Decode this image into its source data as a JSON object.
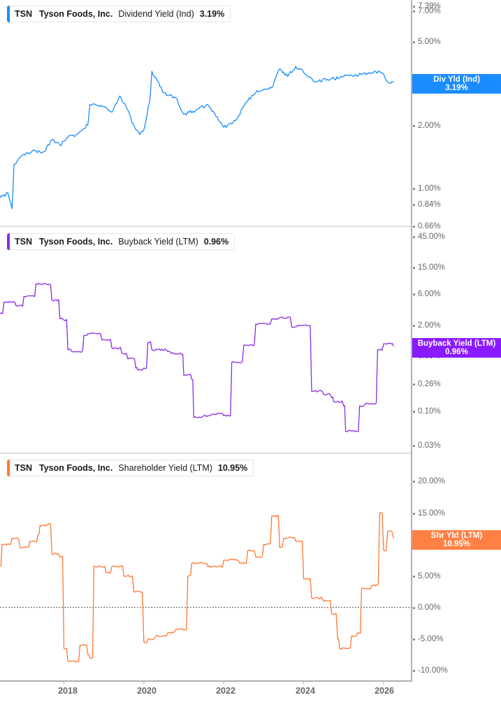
{
  "chart_data": [
    {
      "type": "line",
      "panel": "top",
      "title": "TSN Tyson Foods, Inc. Dividend Yield (Ind)",
      "legend": {
        "ticker": "TSN",
        "company": "Tyson Foods, Inc.",
        "metric": "Dividend Yield (Ind)",
        "value": "3.19%"
      },
      "color": "#1a8cff",
      "yscale": "log",
      "yticks": [
        "7.39%",
        "7.00%",
        "5.00%",
        "3.00%",
        "2.00%",
        "1.00%",
        "0.84%",
        "0.66%"
      ],
      "ylim": [
        0.66,
        7.39
      ],
      "flag": {
        "label": "Div Yld (Ind)",
        "value": "3.19%"
      },
      "x": [
        2016.4,
        2016.6,
        2016.7,
        2016.75,
        2017.0,
        2017.2,
        2017.5,
        2017.7,
        2017.9,
        2018.1,
        2018.3,
        2018.6,
        2018.65,
        2019.0,
        2019.2,
        2019.4,
        2019.6,
        2019.7,
        2019.9,
        2020.0,
        2020.15,
        2020.2,
        2020.5,
        2020.8,
        2021.0,
        2021.3,
        2021.6,
        2021.8,
        2022.0,
        2022.3,
        2022.6,
        2022.8,
        2023.0,
        2023.2,
        2023.4,
        2023.6,
        2023.8,
        2024.0,
        2024.3,
        2024.6,
        2024.9,
        2025.2,
        2025.5,
        2025.8,
        2026.0,
        2026.1,
        2026.25
      ],
      "values": [
        0.9,
        0.95,
        0.8,
        1.3,
        1.45,
        1.5,
        1.5,
        1.7,
        1.6,
        1.75,
        1.8,
        2.0,
        2.5,
        2.45,
        2.3,
        2.75,
        2.35,
        2.05,
        1.8,
        1.9,
        2.6,
        3.6,
        2.85,
        2.7,
        2.25,
        2.35,
        2.5,
        2.2,
        1.95,
        2.1,
        2.6,
        2.85,
        2.95,
        3.0,
        3.7,
        3.4,
        3.8,
        3.55,
        3.2,
        3.3,
        3.35,
        3.45,
        3.5,
        3.6,
        3.5,
        3.2,
        3.19
      ]
    },
    {
      "type": "line",
      "panel": "middle",
      "title": "TSN Tyson Foods, Inc. Buyback Yield (LTM)",
      "legend": {
        "ticker": "TSN",
        "company": "Tyson Foods, Inc.",
        "metric": "Buyback Yield (LTM)",
        "value": "0.96%"
      },
      "color": "#8a2be2",
      "yscale": "log",
      "yticks": [
        "45.00%",
        "15.00%",
        "6.00%",
        "2.00%",
        "0.69%",
        "0.26%",
        "0.10%",
        "0.03%"
      ],
      "ylim": [
        0.03,
        45.0
      ],
      "flag": {
        "label": "Buyback Yield (LTM)",
        "value": "0.96%"
      },
      "x": [
        2016.4,
        2016.5,
        2016.8,
        2017.0,
        2017.3,
        2017.6,
        2017.7,
        2017.9,
        2018.0,
        2018.1,
        2018.2,
        2018.5,
        2018.6,
        2018.95,
        2019.2,
        2019.45,
        2019.6,
        2019.8,
        2019.85,
        2020.0,
        2020.1,
        2020.2,
        2020.6,
        2020.7,
        2020.95,
        2021.0,
        2021.2,
        2021.25,
        2021.5,
        2021.7,
        2022.0,
        2022.2,
        2022.5,
        2022.8,
        2023.2,
        2023.4,
        2023.7,
        2023.85,
        2024.2,
        2024.5,
        2024.7,
        2024.75,
        2025.0,
        2025.05,
        2025.3,
        2025.4,
        2025.55,
        2025.85,
        2026.0,
        2026.25
      ],
      "values": [
        3.0,
        4.5,
        4.0,
        5.5,
        8.5,
        8.2,
        4.8,
        2.5,
        2.4,
        0.85,
        0.8,
        1.4,
        1.5,
        1.2,
        0.9,
        0.75,
        0.62,
        0.45,
        0.42,
        0.45,
        1.1,
        0.85,
        0.8,
        0.75,
        0.72,
        0.35,
        0.3,
        0.08,
        0.085,
        0.09,
        0.085,
        0.55,
        1.0,
        2.1,
        2.5,
        2.6,
        1.9,
        2.0,
        0.2,
        0.18,
        0.16,
        0.14,
        0.12,
        0.05,
        0.05,
        0.12,
        0.13,
        0.85,
        1.05,
        0.96
      ]
    },
    {
      "type": "line",
      "panel": "bottom",
      "title": "TSN Tyson Foods, Inc. Shareholder Yield (LTM)",
      "legend": {
        "ticker": "TSN",
        "company": "Tyson Foods, Inc.",
        "metric": "Shareholder Yield (LTM)",
        "value": "10.95%"
      },
      "color": "#ff7733",
      "yscale": "linear",
      "yticks": [
        "20.00%",
        "15.00%",
        "10.00%",
        "5.00%",
        "0.00%",
        "-5.00%",
        "-10.00%"
      ],
      "ylim": [
        -10.0,
        20.0
      ],
      "reference_line": 0.0,
      "flag": {
        "label": "Shr Yld (LTM)",
        "value": "10.95%"
      },
      "x": [
        2016.4,
        2016.45,
        2016.7,
        2016.9,
        2017.15,
        2017.35,
        2017.4,
        2017.6,
        2017.7,
        2017.9,
        2018.0,
        2018.1,
        2018.4,
        2018.6,
        2018.65,
        2018.75,
        2019.0,
        2019.05,
        2019.2,
        2019.5,
        2019.75,
        2020.0,
        2020.1,
        2020.3,
        2020.6,
        2020.8,
        2021.1,
        2021.2,
        2021.6,
        2022.0,
        2022.4,
        2022.6,
        2022.8,
        2023.0,
        2023.2,
        2023.4,
        2023.5,
        2023.8,
        2024.0,
        2024.2,
        2024.5,
        2024.7,
        2024.85,
        2024.9,
        2025.2,
        2025.35,
        2025.45,
        2025.7,
        2025.9,
        2026.0,
        2026.1,
        2026.25
      ],
      "values": [
        6.5,
        10.0,
        11.0,
        9.5,
        10.5,
        11.5,
        13.0,
        13.2,
        8.5,
        8.0,
        -6.5,
        -8.5,
        -6.0,
        -7.5,
        -8.0,
        6.5,
        6.4,
        5.5,
        6.5,
        5.0,
        2.5,
        -5.5,
        -5.0,
        -4.5,
        -4.0,
        -3.5,
        5.0,
        7.0,
        6.5,
        7.5,
        7.0,
        9.0,
        8.0,
        10.0,
        14.5,
        9.5,
        11.0,
        10.5,
        4.5,
        1.5,
        1.0,
        -1.0,
        -5.0,
        -6.5,
        -4.5,
        -4.0,
        3.0,
        3.5,
        15.0,
        9.0,
        12.0,
        10.95
      ]
    }
  ],
  "x_axis": {
    "range": [
      2016.4,
      2026.7
    ],
    "ticks": [
      "2018",
      "2020",
      "2022",
      "2024",
      "2026"
    ]
  }
}
